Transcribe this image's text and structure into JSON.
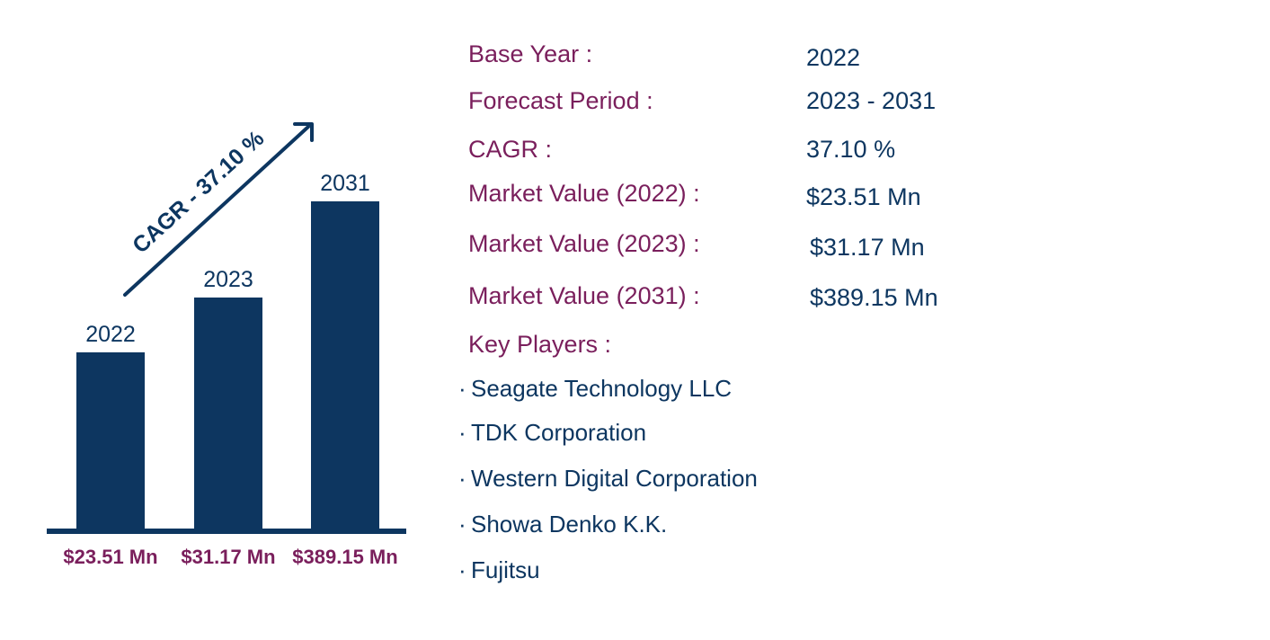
{
  "colors": {
    "bar": "#0d3660",
    "label_maroon": "#7a1f5c",
    "value_navy": "#0d3660",
    "background": "#ffffff"
  },
  "chart_data": {
    "type": "bar",
    "categories": [
      "2022",
      "2023",
      "2031"
    ],
    "values": [
      23.51,
      31.17,
      389.15
    ],
    "value_labels": [
      "$23.51 Mn",
      "$31.17 Mn",
      "$389.15 Mn"
    ],
    "unit": "Mn",
    "annotation": "CAGR - 37.10 %",
    "grid": false,
    "legend": "none"
  },
  "info": {
    "base_year_label": "Base Year :",
    "base_year_value": "2022",
    "forecast_label": "Forecast Period :",
    "forecast_value": "2023 - 2031",
    "cagr_label": "CAGR :",
    "cagr_value": "37.10 %",
    "mv2022_label": "Market Value (2022) :",
    "mv2022_value": "$23.51 Mn",
    "mv2023_label": "Market Value (2023) :",
    "mv2023_value": "$31.17 Mn",
    "mv2031_label": "Market Value (2031) :",
    "mv2031_value": "$389.15 Mn",
    "key_players_label": "Key Players :"
  },
  "key_players": [
    "Seagate Technology LLC",
    "TDK Corporation",
    "Western Digital Corporation",
    "Showa Denko K.K.",
    "Fujitsu"
  ],
  "bullet": "·"
}
